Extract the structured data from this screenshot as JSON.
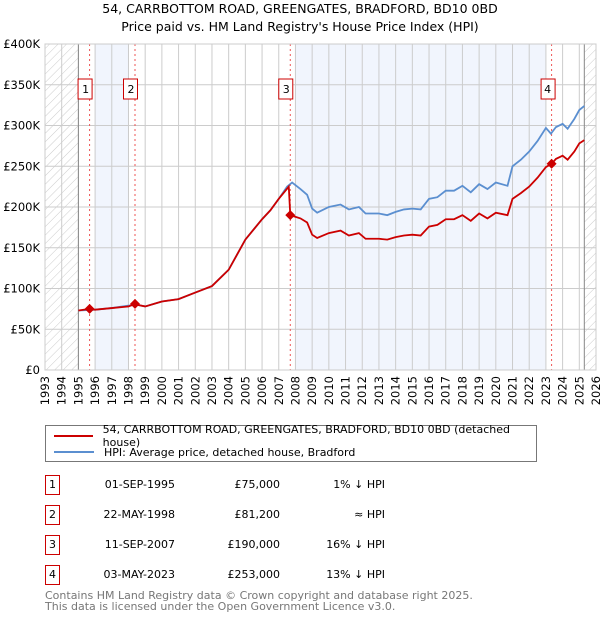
{
  "chart_data": {
    "type": "line",
    "title": "54, CARRBOTTOM ROAD, GREENGATES, BRADFORD, BD10 0BD",
    "subtitle": "Price paid vs. HM Land Registry's House Price Index (HPI)",
    "xlim": [
      1993,
      2026
    ],
    "ylim": [
      0,
      400000
    ],
    "y_ticks": [
      {
        "v": 0,
        "label": "£0"
      },
      {
        "v": 50000,
        "label": "£50K"
      },
      {
        "v": 100000,
        "label": "£100K"
      },
      {
        "v": 150000,
        "label": "£150K"
      },
      {
        "v": 200000,
        "label": "£200K"
      },
      {
        "v": 250000,
        "label": "£250K"
      },
      {
        "v": 300000,
        "label": "£300K"
      },
      {
        "v": 350000,
        "label": "£350K"
      },
      {
        "v": 400000,
        "label": "£400K"
      }
    ],
    "x_ticks": [
      "1993",
      "1994",
      "1995",
      "1996",
      "1997",
      "1998",
      "1999",
      "2000",
      "2001",
      "2002",
      "2003",
      "2004",
      "2005",
      "2006",
      "2007",
      "2008",
      "2009",
      "2010",
      "2011",
      "2012",
      "2013",
      "2014",
      "2015",
      "2016",
      "2017",
      "2018",
      "2019",
      "2020",
      "2021",
      "2022",
      "2023",
      "2024",
      "2025",
      "2026"
    ],
    "grid": true,
    "no_data_before": 1995,
    "no_data_after": 2025.3,
    "shaded_ranges": [
      [
        1996,
        1998
      ],
      [
        2008,
        2023
      ]
    ],
    "series": [
      {
        "name": "54, CARRBOTTOM ROAD, GREENGATES, BRADFORD, BD10 0BD (detached house)",
        "color": "#cc0000",
        "x": [
          1995.0,
          1995.67,
          1996,
          1997,
          1998,
          1998.39,
          1998.5,
          1999,
          2000,
          2001,
          2002,
          2003,
          2004,
          2005,
          2006,
          2006.5,
          2007,
          2007.6,
          2007.69,
          2008.3,
          2008.7,
          2009,
          2009.3,
          2010,
          2010.7,
          2011.2,
          2011.8,
          2012.2,
          2013,
          2013.5,
          2014,
          2014.5,
          2015,
          2015.5,
          2016,
          2016.5,
          2017,
          2017.5,
          2018,
          2018.5,
          2019,
          2019.5,
          2020,
          2020.7,
          2021,
          2021.5,
          2022,
          2022.5,
          2023,
          2023.34,
          2023.6,
          2024,
          2024.3,
          2024.7,
          2025,
          2025.3
        ],
        "y": [
          73000,
          75000,
          74000,
          76000,
          78000,
          81200,
          80000,
          78000,
          84000,
          87000,
          95000,
          103000,
          123000,
          160000,
          185000,
          196000,
          210000,
          225000,
          190000,
          186000,
          181000,
          166000,
          162000,
          168000,
          171000,
          165000,
          168000,
          161000,
          161000,
          160000,
          163000,
          165000,
          166000,
          165000,
          176000,
          178000,
          185000,
          185000,
          190000,
          183000,
          192000,
          186000,
          193000,
          190000,
          210000,
          217000,
          225000,
          236000,
          249000,
          253000,
          259000,
          263000,
          258000,
          268000,
          278000,
          282000
        ]
      },
      {
        "name": "HPI: Average price, detached house, Bradford",
        "color": "#5b8fd0",
        "x": [
          1995.0,
          1996,
          1997,
          1998,
          1998.5,
          1999,
          2000,
          2001,
          2002,
          2003,
          2004,
          2005,
          2006,
          2006.5,
          2007,
          2007.5,
          2007.8,
          2008.3,
          2008.7,
          2009,
          2009.3,
          2010,
          2010.7,
          2011.2,
          2011.8,
          2012.2,
          2013,
          2013.5,
          2014,
          2014.5,
          2015,
          2015.5,
          2016,
          2016.5,
          2017,
          2017.5,
          2018,
          2018.5,
          2019,
          2019.5,
          2020,
          2020.7,
          2021,
          2021.5,
          2022,
          2022.5,
          2023,
          2023.3,
          2023.6,
          2024,
          2024.3,
          2024.7,
          2025,
          2025.3
        ],
        "y": [
          73000,
          74000,
          76000,
          79000,
          80000,
          78000,
          84000,
          87000,
          95000,
          103000,
          123000,
          160000,
          185000,
          196000,
          210000,
          225000,
          230000,
          222000,
          215000,
          198000,
          193000,
          200000,
          203000,
          197000,
          200000,
          192000,
          192000,
          190000,
          194000,
          197000,
          198000,
          197000,
          210000,
          212000,
          220000,
          220000,
          226000,
          218000,
          228000,
          222000,
          230000,
          226000,
          250000,
          258000,
          268000,
          281000,
          297000,
          290000,
          298000,
          302000,
          296000,
          308000,
          319000,
          324000
        ]
      }
    ],
    "sales": [
      {
        "label": "1",
        "x": 1995.67,
        "price": 75000
      },
      {
        "label": "2",
        "x": 1998.39,
        "price": 81200
      },
      {
        "label": "3",
        "x": 2007.69,
        "price": 190000
      },
      {
        "label": "4",
        "x": 2023.34,
        "price": 253000
      }
    ]
  },
  "legend": {
    "items": [
      "54, CARRBOTTOM ROAD, GREENGATES, BRADFORD, BD10 0BD (detached house)",
      "HPI: Average price, detached house, Bradford"
    ]
  },
  "table": [
    {
      "num": "1",
      "date": "01-SEP-1995",
      "price": "£75,000",
      "rel": "1% ↓ HPI"
    },
    {
      "num": "2",
      "date": "22-MAY-1998",
      "price": "£81,200",
      "rel": "≈ HPI"
    },
    {
      "num": "3",
      "date": "11-SEP-2007",
      "price": "£190,000",
      "rel": "16% ↓ HPI"
    },
    {
      "num": "4",
      "date": "03-MAY-2023",
      "price": "£253,000",
      "rel": "13% ↓ HPI"
    }
  ],
  "footer": [
    "Contains HM Land Registry data © Crown copyright and database right 2025.",
    "This data is licensed under the Open Government Licence v3.0."
  ]
}
